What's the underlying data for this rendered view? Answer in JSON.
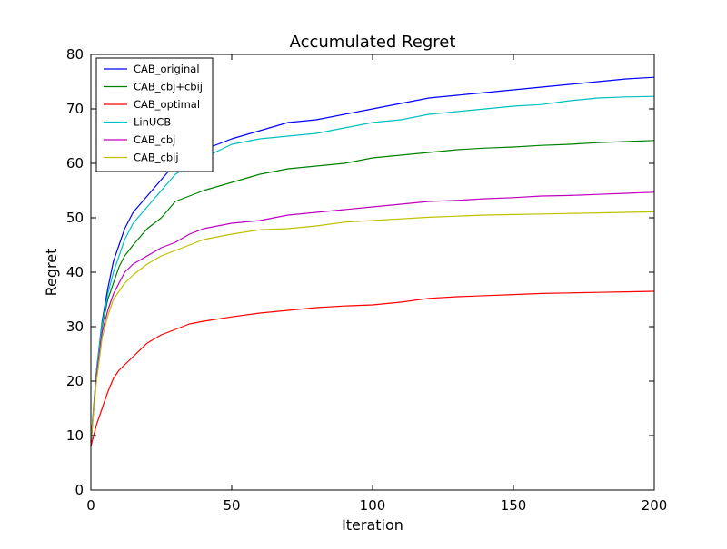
{
  "chart_data": {
    "type": "line",
    "title": "Accumulated Regret",
    "xlabel": "Iteration",
    "ylabel": "Regret",
    "xlim": [
      0,
      200
    ],
    "ylim": [
      0,
      80
    ],
    "x_ticks": [
      0,
      50,
      100,
      150,
      200
    ],
    "y_ticks": [
      0,
      10,
      20,
      30,
      40,
      50,
      60,
      70,
      80
    ],
    "grid": false,
    "legend_position": "upper-left",
    "x": [
      0,
      2,
      4,
      6,
      8,
      10,
      12,
      15,
      20,
      25,
      30,
      35,
      40,
      50,
      60,
      70,
      80,
      90,
      100,
      110,
      120,
      130,
      140,
      150,
      160,
      170,
      180,
      190,
      200
    ],
    "series": [
      {
        "name": "CAB_original",
        "color": "#0000ff",
        "values": [
          8,
          22,
          31,
          37,
          42,
          45,
          48,
          51,
          54,
          57,
          60,
          61.5,
          62.5,
          64.5,
          66,
          67.5,
          68,
          69,
          70,
          71,
          72,
          72.5,
          73,
          73.5,
          74,
          74.5,
          75,
          75.5,
          75.8
        ]
      },
      {
        "name": "CAB_cbj+cbij",
        "color": "#008000",
        "values": [
          9,
          21,
          30,
          35,
          38,
          41,
          43,
          45,
          48,
          50,
          53,
          54,
          55,
          56.5,
          58,
          59,
          59.5,
          60,
          61,
          61.5,
          62,
          62.5,
          62.8,
          63,
          63.3,
          63.5,
          63.8,
          64,
          64.2
        ]
      },
      {
        "name": "CAB_optimal",
        "color": "#ff0000",
        "values": [
          8,
          12,
          15,
          18,
          20.5,
          22,
          23,
          24.5,
          27,
          28.5,
          29.5,
          30.5,
          31,
          31.8,
          32.5,
          33,
          33.5,
          33.8,
          34,
          34.5,
          35.2,
          35.5,
          35.7,
          35.9,
          36.1,
          36.2,
          36.3,
          36.4,
          36.5
        ]
      },
      {
        "name": "LinUCB",
        "color": "#00bfbf",
        "values": [
          9,
          22,
          30.5,
          36,
          40,
          43,
          46,
          49,
          52,
          55,
          58,
          59.5,
          61,
          63.5,
          64.5,
          65,
          65.5,
          66.5,
          67.5,
          68,
          69,
          69.5,
          70,
          70.5,
          70.8,
          71.5,
          72,
          72.2,
          72.3
        ]
      },
      {
        "name": "CAB_cbj",
        "color": "#bf00bf",
        "values": [
          9,
          21,
          29,
          33,
          36,
          38,
          40,
          41.5,
          43,
          44.5,
          45.5,
          47,
          48,
          49,
          49.5,
          50.5,
          51,
          51.5,
          52,
          52.5,
          53,
          53.2,
          53.5,
          53.7,
          54,
          54.1,
          54.3,
          54.5,
          54.7
        ]
      },
      {
        "name": "CAB_cbij",
        "color": "#bfbf00",
        "values": [
          9,
          20,
          28,
          32,
          35,
          36.5,
          38,
          39.5,
          41.5,
          43,
          44,
          45,
          46,
          47,
          47.8,
          48,
          48.5,
          49.2,
          49.5,
          49.8,
          50.1,
          50.3,
          50.5,
          50.6,
          50.7,
          50.8,
          50.9,
          51,
          51.1
        ]
      }
    ]
  }
}
